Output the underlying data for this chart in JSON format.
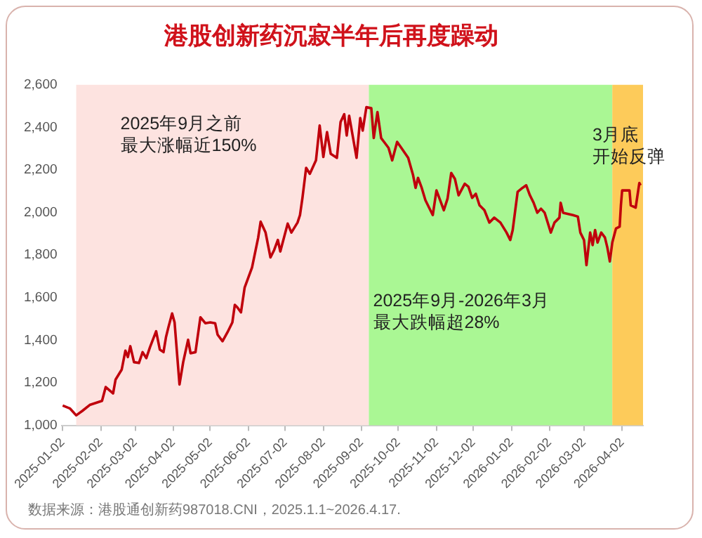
{
  "chart_data": {
    "type": "line",
    "title": "港股创新药沉寂半年后再度躁动",
    "annotations": [
      "2025年9月之前最大涨幅近150%",
      "3月底开始反弹",
      "2025年9月-2026年3月最大跌幅超28%",
      "数据来源：港股通创新药987018.CNI，2025.1.1~2026.4.17."
    ],
    "x": [
      "2025-01-02",
      "2025-01-08",
      "2025-01-13",
      "2025-01-18",
      "2025-01-24",
      "2025-02-03",
      "2025-02-06",
      "2025-02-12",
      "2025-02-14",
      "2025-02-19",
      "2025-02-22",
      "2025-02-24",
      "2025-02-26",
      "2025-03-01",
      "2025-03-05",
      "2025-03-08",
      "2025-03-11",
      "2025-03-14",
      "2025-03-19",
      "2025-03-22",
      "2025-03-25",
      "2025-03-27",
      "2025-03-29",
      "2025-04-01",
      "2025-04-03",
      "2025-04-07",
      "2025-04-10",
      "2025-04-14",
      "2025-04-16",
      "2025-04-20",
      "2025-04-24",
      "2025-04-28",
      "2025-05-02",
      "2025-05-06",
      "2025-05-08",
      "2025-05-12",
      "2025-05-16",
      "2025-05-20",
      "2025-05-22",
      "2025-05-24",
      "2025-05-27",
      "2025-05-30",
      "2025-06-02",
      "2025-06-05",
      "2025-06-10",
      "2025-06-12",
      "2025-06-16",
      "2025-06-20",
      "2025-06-23",
      "2025-06-26",
      "2025-06-28",
      "2025-07-04",
      "2025-07-07",
      "2025-07-12",
      "2025-07-14",
      "2025-07-16",
      "2025-07-19",
      "2025-07-22",
      "2025-07-27",
      "2025-07-30",
      "2025-08-02",
      "2025-08-05",
      "2025-08-08",
      "2025-08-13",
      "2025-08-16",
      "2025-08-19",
      "2025-08-21",
      "2025-08-23",
      "2025-08-29",
      "2025-09-01",
      "2025-09-03",
      "2025-09-06",
      "2025-09-10",
      "2025-09-12",
      "2025-09-15",
      "2025-09-18",
      "2025-09-21",
      "2025-09-24",
      "2025-09-27",
      "2025-10-01",
      "2025-10-05",
      "2025-10-10",
      "2025-10-14",
      "2025-10-16",
      "2025-10-18",
      "2025-10-21",
      "2025-10-24",
      "2025-10-30",
      "2025-11-02",
      "2025-11-05",
      "2025-11-08",
      "2025-11-11",
      "2025-11-14",
      "2025-11-17",
      "2025-11-20",
      "2025-11-25",
      "2025-11-28",
      "2025-12-01",
      "2025-12-04",
      "2025-12-07",
      "2025-12-11",
      "2025-12-15",
      "2025-12-19",
      "2025-12-24",
      "2025-12-29",
      "2026-01-01",
      "2026-01-03",
      "2026-01-07",
      "2026-01-11",
      "2026-01-14",
      "2026-01-17",
      "2026-01-20",
      "2026-01-23",
      "2026-01-26",
      "2026-01-29",
      "2026-02-03",
      "2026-02-06",
      "2026-02-10",
      "2026-02-11",
      "2026-02-13",
      "2026-02-21",
      "2026-02-25",
      "2026-02-27",
      "2026-03-02",
      "2026-03-04",
      "2026-03-07",
      "2026-03-09",
      "2026-03-11",
      "2026-03-13",
      "2026-03-16",
      "2026-03-19",
      "2026-03-21",
      "2026-03-23",
      "2026-03-25",
      "2026-03-28",
      "2026-03-31",
      "2026-04-01",
      "2026-04-02",
      "2026-04-08",
      "2026-04-09",
      "2026-04-13",
      "2026-04-16",
      "2026-04-17"
    ],
    "series": [
      {
        "color": "#c0000c",
        "values": [
          1093,
          1079,
          1047,
          1068,
          1096,
          1115,
          1180,
          1150,
          1215,
          1262,
          1351,
          1321,
          1372,
          1297,
          1293,
          1344,
          1316,
          1367,
          1442,
          1356,
          1344,
          1414,
          1461,
          1526,
          1484,
          1192,
          1297,
          1402,
          1339,
          1344,
          1508,
          1480,
          1484,
          1480,
          1426,
          1395,
          1437,
          1484,
          1566,
          1555,
          1531,
          1648,
          1695,
          1742,
          1882,
          1957,
          1906,
          1789,
          1824,
          1871,
          1817,
          1948,
          1906,
          1953,
          1988,
          2069,
          2210,
          2182,
          2245,
          2409,
          2261,
          2378,
          2276,
          2257,
          2425,
          2462,
          2362,
          2455,
          2257,
          2444,
          2385,
          2495,
          2490,
          2350,
          2472,
          2350,
          2327,
          2304,
          2245,
          2332,
          2299,
          2257,
          2175,
          2116,
          2163,
          2116,
          2058,
          1988,
          2104,
          2058,
          2011,
          2065,
          2186,
          2158,
          2081,
          2135,
          2121,
          2069,
          2088,
          2034,
          2011,
          1953,
          1976,
          1953,
          1906,
          1871,
          1918,
          2097,
          2116,
          2128,
          2081,
          2046,
          1999,
          2018,
          1999,
          1906,
          1953,
          1976,
          2046,
          1999,
          1988,
          1981,
          1906,
          1871,
          1753,
          1906,
          1847,
          1918,
          1859,
          1906,
          1883,
          1835,
          1770,
          1859,
          1925,
          1934,
          2034,
          2104,
          2104,
          2034,
          2023,
          2139,
          2128
        ]
      }
    ],
    "xlim": [
      "2025-01-01",
      "2026-04-19"
    ],
    "xticks": [
      "2025-01-02",
      "2025-02-02",
      "2025-03-02",
      "2025-04-02",
      "2025-05-02",
      "2025-06-02",
      "2025-07-02",
      "2025-08-02",
      "2025-09-02",
      "2025-10-02",
      "2025-11-02",
      "2025-12-02",
      "2026-01-02",
      "2026-02-02",
      "2026-03-02",
      "2026-04-02"
    ],
    "ylim": [
      1000,
      2600
    ],
    "yticks": [
      {
        "value": 1000,
        "label": "1,000"
      },
      {
        "value": 1200,
        "label": "1,200"
      },
      {
        "value": 1400,
        "label": "1,400"
      },
      {
        "value": 1600,
        "label": "1,600"
      },
      {
        "value": 1800,
        "label": "1,800"
      },
      {
        "value": 2000,
        "label": "2,000"
      },
      {
        "value": 2200,
        "label": "2,200"
      },
      {
        "value": 2400,
        "label": "2,400"
      },
      {
        "value": 2600,
        "label": "2,600"
      }
    ],
    "bands": [
      {
        "axis": "x",
        "from": "2025-01-13",
        "to": "2025-09-08",
        "color": "#fde3e0"
      },
      {
        "axis": "x",
        "from": "2025-09-08",
        "to": "2026-03-25",
        "color": "#aaf794"
      },
      {
        "axis": "x",
        "from": "2026-03-25",
        "to": "2026-04-19",
        "color": "#fdcb5a"
      }
    ],
    "grid": false,
    "legend": false,
    "marker": "none",
    "line_style": "solid"
  }
}
